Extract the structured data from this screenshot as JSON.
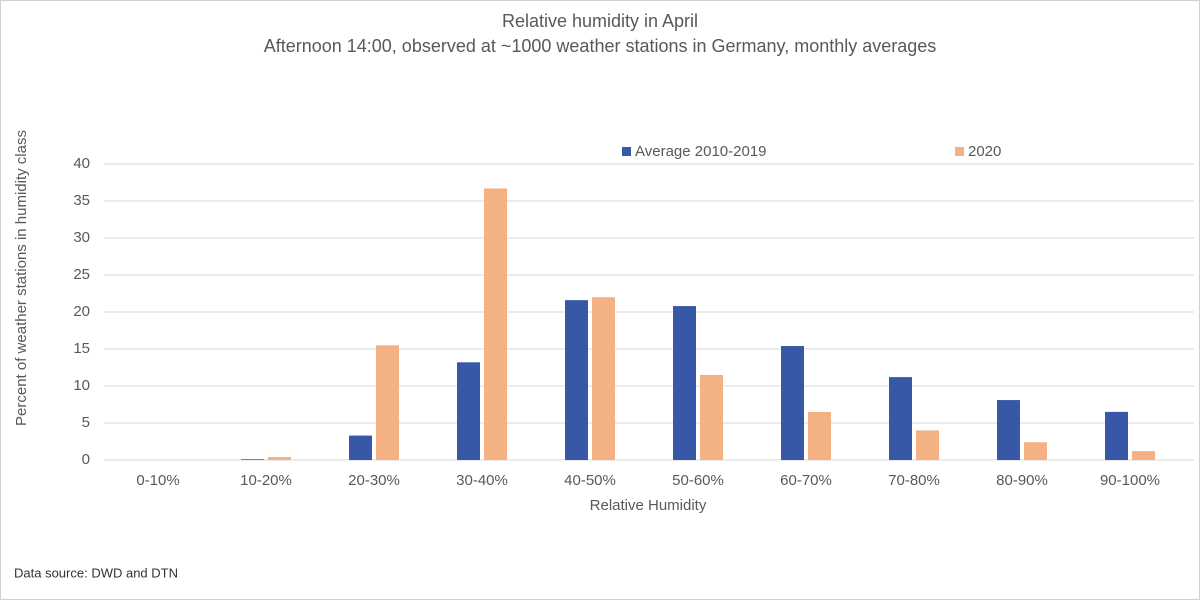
{
  "chart_data": {
    "type": "bar",
    "title": "Relative humidity in April",
    "subtitle": "Afternoon 14:00, observed at ~1000 weather stations in Germany, monthly averages",
    "x_label": "Relative Humidity",
    "y_label": "Percent of weather stations in humidity class",
    "source": "Data source: DWD and DTN",
    "categories": [
      "0-10%",
      "10-20%",
      "20-30%",
      "30-40%",
      "40-50%",
      "50-60%",
      "60-70%",
      "70-80%",
      "80-90%",
      "90-100%"
    ],
    "series": [
      {
        "name": "Average 2010-2019",
        "color": "#3658a6",
        "values": [
          0,
          0.1,
          3.3,
          13.2,
          21.6,
          20.8,
          15.4,
          11.2,
          8.1,
          6.5
        ]
      },
      {
        "name": "2020",
        "color": "#f4b183",
        "values": [
          0,
          0.4,
          15.5,
          36.7,
          22.0,
          11.5,
          6.5,
          4.0,
          2.4,
          1.2
        ]
      }
    ],
    "ylim": [
      0,
      40
    ],
    "yticks": [
      0,
      5,
      10,
      15,
      20,
      25,
      30,
      35,
      40
    ],
    "grid": true,
    "legend": "top"
  }
}
